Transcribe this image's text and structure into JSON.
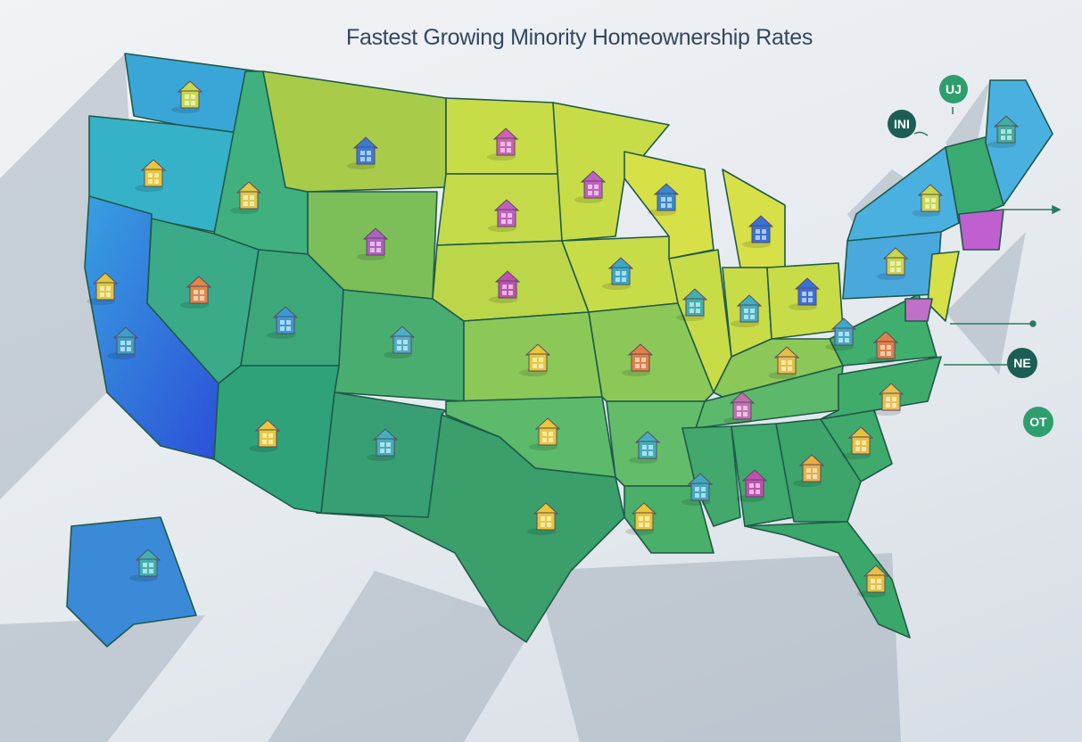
{
  "title": "Fastest Growing Minority Homeownership Rates",
  "labels": [
    {
      "id": "uj",
      "text": "UJ",
      "color": "#2f9e6e"
    },
    {
      "id": "ini",
      "text": "INI",
      "color": "#1d5e54"
    },
    {
      "id": "ne",
      "text": "NE",
      "color": "#1d5e54"
    },
    {
      "id": "ot",
      "text": "OT",
      "color": "#2f9e6e"
    }
  ],
  "colors": {
    "blue": "#3a8ad8",
    "teal": "#3aa88a",
    "green": "#3fa86c",
    "lime": "#c8dc48",
    "magenta": "#c060d0"
  },
  "icons": {
    "house": "house-icon"
  }
}
